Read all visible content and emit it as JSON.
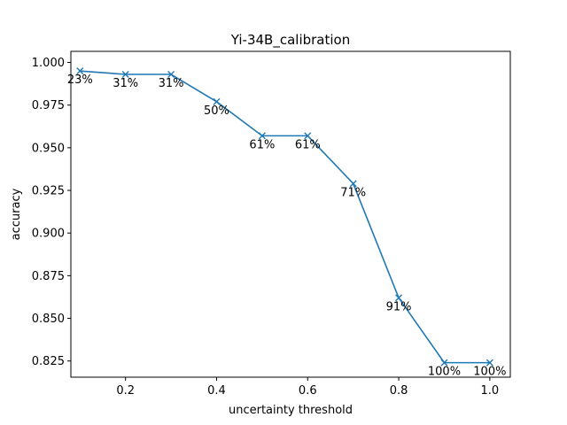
{
  "chart_data": {
    "type": "line",
    "title": "Yi-34B_calibration",
    "xlabel": "uncertainty threshold",
    "ylabel": "accuracy",
    "xlim": [
      0.08,
      1.045
    ],
    "ylim": [
      0.8155,
      1.0065
    ],
    "xticks": [
      "0.2",
      "0.4",
      "0.6",
      "0.8",
      "1.0"
    ],
    "xtick_values": [
      0.2,
      0.4,
      0.6,
      0.8,
      1.0
    ],
    "yticks": [
      "0.825",
      "0.850",
      "0.875",
      "0.900",
      "0.925",
      "0.950",
      "0.975",
      "1.000"
    ],
    "ytick_values": [
      0.825,
      0.85,
      0.875,
      0.9,
      0.925,
      0.95,
      0.975,
      1.0
    ],
    "grid": false,
    "marker": "x",
    "color": "#1f77b4",
    "series": [
      {
        "x": [
          0.1,
          0.2,
          0.3,
          0.4,
          0.5,
          0.6,
          0.7,
          0.8,
          0.9,
          1.0
        ],
        "y": [
          0.995,
          0.993,
          0.993,
          0.977,
          0.957,
          0.957,
          0.929,
          0.862,
          0.824,
          0.824
        ],
        "labels": [
          "23%",
          "31%",
          "31%",
          "50%",
          "61%",
          "61%",
          "71%",
          "91%",
          "100%",
          "100%"
        ]
      }
    ]
  }
}
